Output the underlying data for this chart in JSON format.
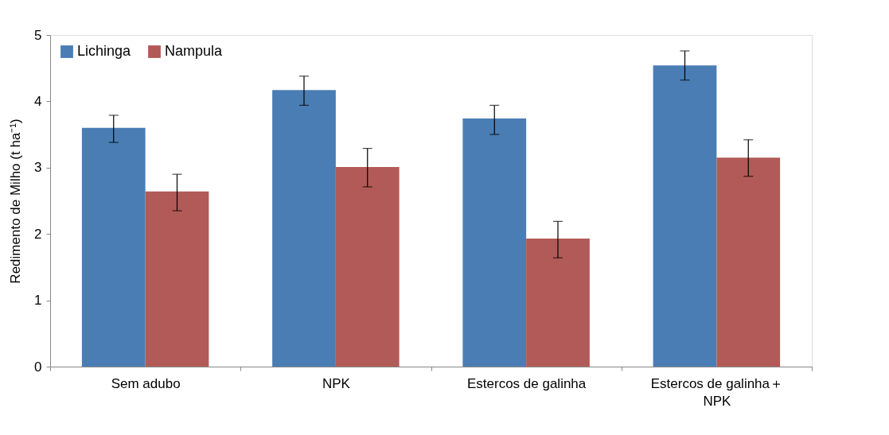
{
  "chart_data": {
    "type": "bar",
    "ylabel": "Redimento de Milho (t ha⁻¹)",
    "categories": [
      "Sem adubo",
      "NPK",
      "Estercos de galinha",
      "Estercos de galinha＋\nNPK"
    ],
    "series": [
      {
        "name": "Lichinga",
        "color": "#4a7db4",
        "values": [
          3.6,
          4.17,
          3.74,
          4.54
        ],
        "errors": [
          [
            3.38,
            3.79
          ],
          [
            3.94,
            4.38
          ],
          [
            3.5,
            3.94
          ],
          [
            4.32,
            4.76
          ]
        ]
      },
      {
        "name": "Nampula",
        "color": "#b25a57",
        "values": [
          2.64,
          3.01,
          1.93,
          3.15
        ],
        "errors": [
          [
            2.35,
            2.9
          ],
          [
            2.71,
            3.29
          ],
          [
            1.64,
            2.19
          ],
          [
            2.87,
            3.42
          ]
        ]
      }
    ],
    "ylim": [
      0,
      5
    ],
    "yticks": [
      0,
      1,
      2,
      3,
      4,
      5
    ],
    "grid": false,
    "legend": "top left"
  }
}
